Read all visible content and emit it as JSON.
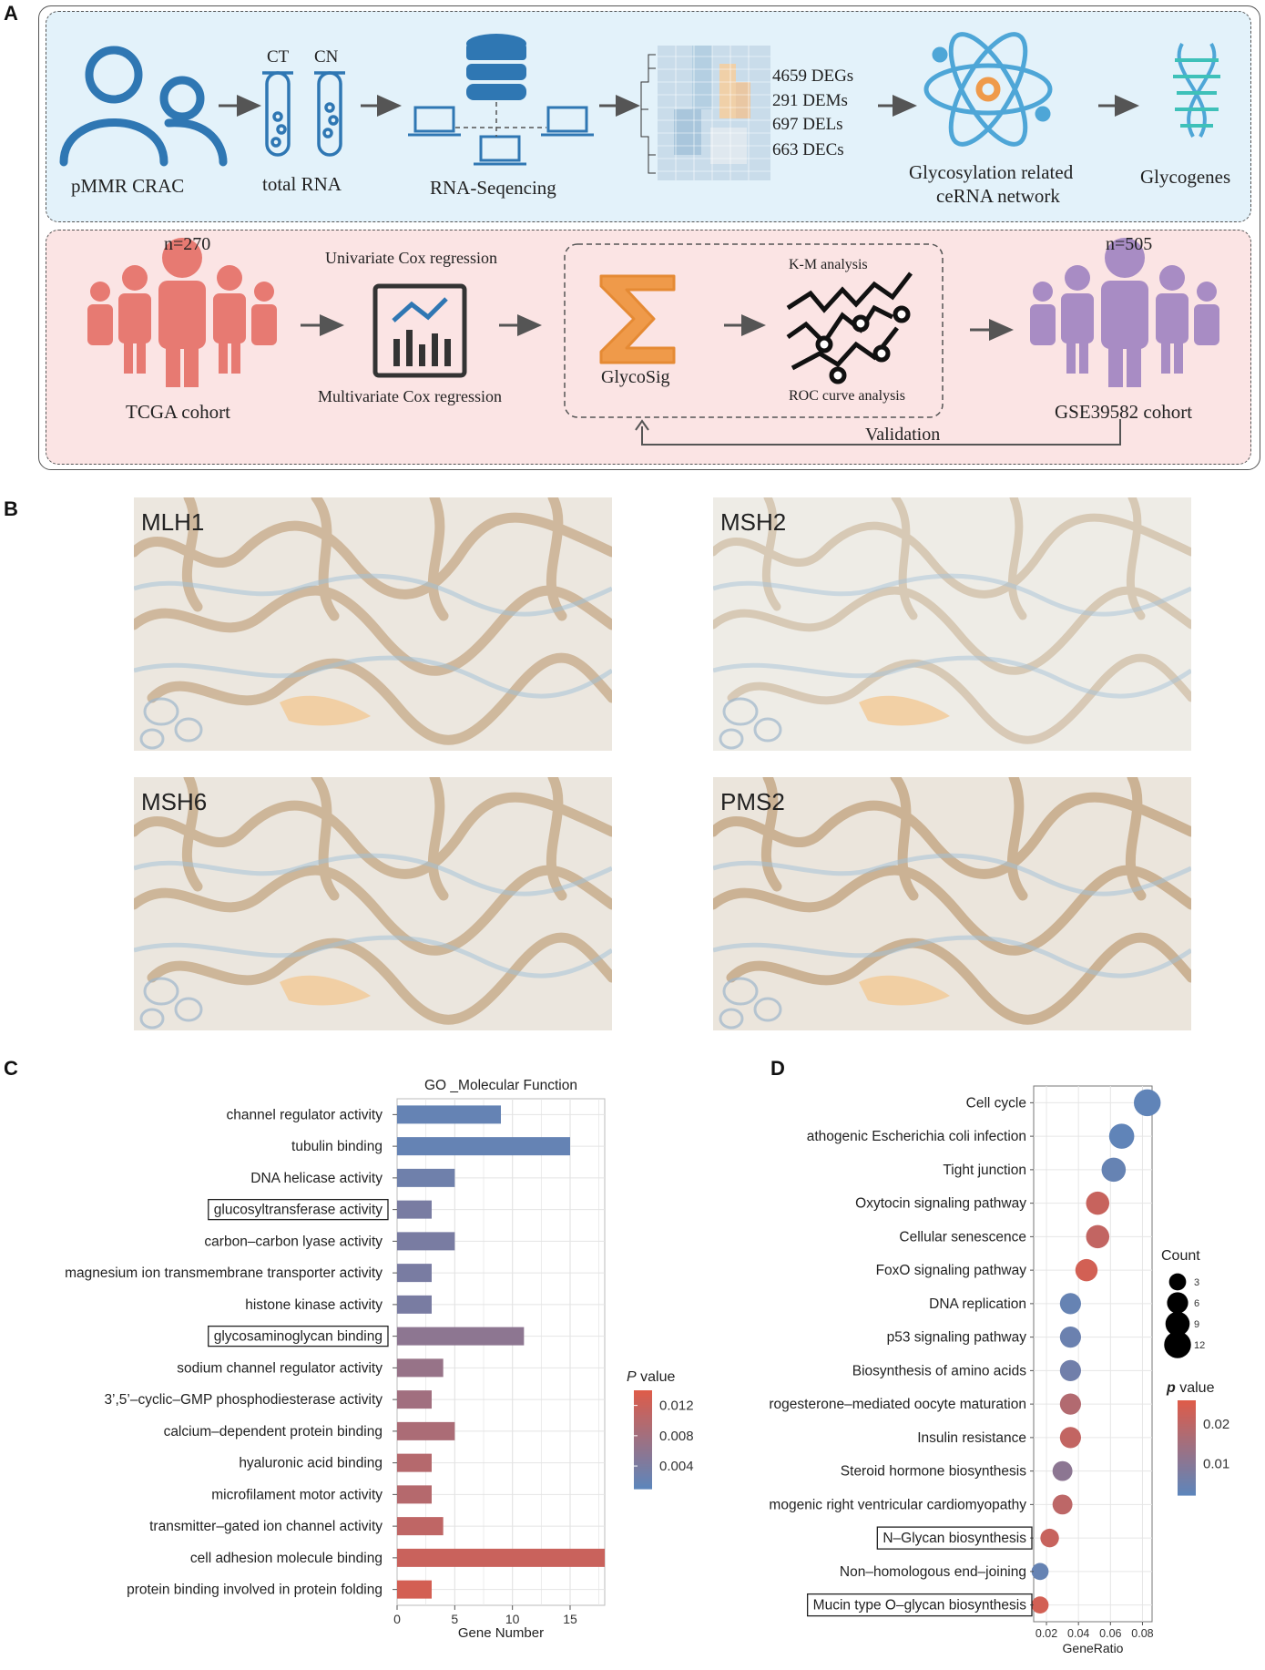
{
  "panels": {
    "a": "A",
    "b": "B",
    "c": "C",
    "d": "D"
  },
  "workflow": {
    "pmmr": "pMMR CRAC",
    "ct": "CT",
    "cn": "CN",
    "total_rna": "total RNA",
    "rna_seq": "RNA-Seqencing",
    "degs": "4659 DEGs",
    "dems": "291 DEMs",
    "dels": "697 DELs",
    "decs": "663 DECs",
    "network_line1": "Glycosylation related",
    "network_line2": "ceRNA network",
    "glycogenes": "Glycogenes",
    "tcga_n": "n=270",
    "tcga": "TCGA cohort",
    "univariate": "Univariate Cox regression",
    "multivariate": "Multivariate Cox regression",
    "glycosig": "GlycoSig",
    "km": "K-M analysis",
    "roc": "ROC curve analysis",
    "gse_n": "n=505",
    "gse": "GSE39582 cohort",
    "validation": "Validation"
  },
  "ihc": [
    {
      "label": "MLH1"
    },
    {
      "label": "MSH2"
    },
    {
      "label": "MSH6"
    },
    {
      "label": "PMS2"
    }
  ],
  "colors": {
    "blue_panel": "#e3f2fa",
    "pink_panel": "#fbe4e4",
    "icon_blue": "#2f77b3",
    "icon_red": "#e77a72",
    "icon_purple": "#a88cc4",
    "sigma_orange": "#ef9a4a",
    "low_p": "#5b86bd",
    "high_p": "#dd5c4a"
  },
  "chart_data": [
    {
      "type": "bar",
      "orientation": "horizontal",
      "title": "GO _Molecular Function",
      "xlabel": "Gene Number",
      "ylabel": "",
      "xlim": [
        0,
        18
      ],
      "xticks": [
        0,
        5,
        10,
        15
      ],
      "categories": [
        "channel regulator activity",
        "tubulin binding",
        "DNA helicase activity",
        "glucosyltransferase activity",
        "carbon–carbon lyase activity",
        "magnesium ion transmembrane transporter activity",
        "histone kinase activity",
        "glycosaminoglycan binding",
        "sodium channel regulator activity",
        "3’,5’–cyclic–GMP phosphodiesterase activity",
        "calcium–dependent protein binding",
        "hyaluronic acid binding",
        "microfilament motor activity",
        "transmitter–gated ion channel activity",
        "cell adhesion molecule binding",
        "protein binding involved in protein folding"
      ],
      "boxed": [
        "glucosyltransferase activity",
        "glycosaminoglycan binding"
      ],
      "values": [
        9,
        15,
        5,
        3,
        5,
        3,
        3,
        11,
        4,
        3,
        5,
        3,
        3,
        4,
        18,
        3
      ],
      "pvalues": [
        0.002,
        0.002,
        0.003,
        0.004,
        0.004,
        0.004,
        0.004,
        0.006,
        0.007,
        0.008,
        0.009,
        0.01,
        0.01,
        0.011,
        0.012,
        0.013
      ],
      "legend": {
        "title_italic": "P",
        "title_rest": " value",
        "ticks": [
          "0.012",
          "0.008",
          "0.004"
        ],
        "tick_values": [
          0.012,
          0.008,
          0.004
        ],
        "range": [
          0.001,
          0.014
        ]
      }
    },
    {
      "type": "scatter",
      "title": "",
      "xlabel": "GeneRatio",
      "ylabel": "",
      "xlim": [
        0.012,
        0.086
      ],
      "xticks": [
        0.02,
        0.04,
        0.06,
        0.08
      ],
      "xtick_labels": [
        "0.02",
        "0.04",
        "0.06",
        "0.08"
      ],
      "categories": [
        "Cell cycle",
        "athogenic Escherichia coli infection",
        "Tight junction",
        "Oxytocin signaling pathway",
        "Cellular senescence",
        "FoxO signaling pathway",
        "DNA replication",
        "p53 signaling pathway",
        "Biosynthesis of amino acids",
        "Progesterone–mediated oocyte maturation",
        "Insulin resistance",
        "Steroid hormone biosynthesis",
        "Arrhythmogenic right ventricular cardiomyopathy",
        "N–Glycan biosynthesis",
        "Non–homologous end–joining",
        "Mucin type O–glycan biosynthesis"
      ],
      "boxed": [
        "N–Glycan biosynthesis",
        "Mucin type O–glycan biosynthesis"
      ],
      "x": [
        0.083,
        0.067,
        0.062,
        0.052,
        0.052,
        0.045,
        0.035,
        0.035,
        0.035,
        0.035,
        0.035,
        0.03,
        0.03,
        0.022,
        0.016,
        0.016
      ],
      "counts": [
        12,
        10,
        9,
        8,
        8,
        7,
        6,
        6,
        6,
        6,
        6,
        5,
        5,
        4,
        3,
        3
      ],
      "pvalues": [
        0.003,
        0.003,
        0.004,
        0.022,
        0.021,
        0.024,
        0.004,
        0.005,
        0.006,
        0.018,
        0.021,
        0.011,
        0.02,
        0.022,
        0.004,
        0.024
      ],
      "legend_count": {
        "title": "Count",
        "values": [
          3,
          6,
          9,
          12
        ]
      },
      "legend_p": {
        "title_italic": "p",
        "title_rest": " value",
        "ticks": [
          "0.02",
          "0.01"
        ],
        "tick_values": [
          0.02,
          0.01
        ],
        "range": [
          0.002,
          0.026
        ]
      }
    }
  ]
}
